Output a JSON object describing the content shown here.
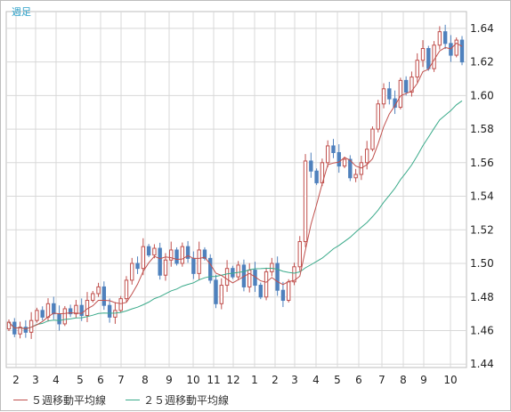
{
  "chart_data": {
    "type": "candlestick",
    "period_label": "週足",
    "x_tick_labels": [
      "2",
      "3",
      "4",
      "5",
      "6",
      "7",
      "8",
      "9",
      "10",
      "11",
      "12",
      "1",
      "2",
      "3",
      "4",
      "5",
      "6",
      "7",
      "8",
      "9",
      "10"
    ],
    "y_ticks": [
      1.44,
      1.46,
      1.48,
      1.5,
      1.52,
      1.54,
      1.56,
      1.58,
      1.6,
      1.62,
      1.64
    ],
    "ylim": [
      1.438,
      1.65
    ],
    "grid": true,
    "legend_position": "bottom-left",
    "colors": {
      "up": "#c0504d",
      "down": "#4f81bd",
      "ma5": "#c0504d",
      "ma25": "#3aaa8a",
      "grid": "#d8d8d8"
    },
    "legend": [
      {
        "name": "５週移動平均線",
        "color": "#c0504d"
      },
      {
        "name": "２５週移動平均線",
        "color": "#3aaa8a"
      }
    ],
    "closes": [
      1.465,
      1.458,
      1.462,
      1.459,
      1.466,
      1.472,
      1.468,
      1.476,
      1.47,
      1.464,
      1.473,
      1.47,
      1.475,
      1.469,
      1.478,
      1.482,
      1.486,
      1.475,
      1.468,
      1.472,
      1.479,
      1.49,
      1.5,
      1.497,
      1.51,
      1.505,
      1.509,
      1.493,
      1.502,
      1.508,
      1.5,
      1.51,
      1.503,
      1.494,
      1.508,
      1.503,
      1.49,
      1.476,
      1.487,
      1.497,
      1.492,
      1.499,
      1.486,
      1.496,
      1.487,
      1.48,
      1.495,
      1.5,
      1.484,
      1.478,
      1.489,
      1.498,
      1.513,
      1.561,
      1.555,
      1.548,
      1.56,
      1.57,
      1.566,
      1.558,
      1.562,
      1.551,
      1.553,
      1.56,
      1.568,
      1.58,
      1.595,
      1.604,
      1.598,
      1.593,
      1.609,
      1.602,
      1.611,
      1.621,
      1.628,
      1.616,
      1.63,
      1.638,
      1.631,
      1.624,
      1.633,
      1.62
    ]
  }
}
